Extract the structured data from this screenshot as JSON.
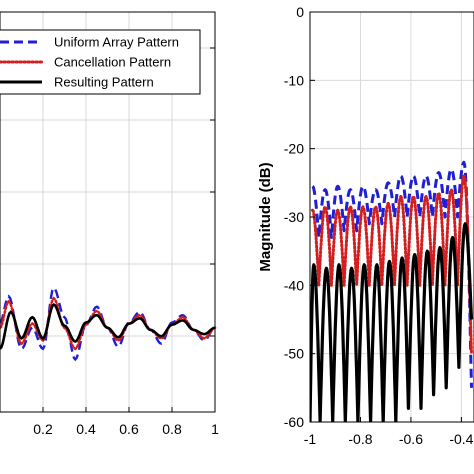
{
  "chart_data": [
    {
      "type": "line",
      "title": "",
      "xlabel": "",
      "ylabel": "",
      "xlim": [
        0.0,
        1.0
      ],
      "x_ticks": [
        "0.2",
        "0.4",
        "0.6",
        "0.8",
        "1"
      ],
      "x_tick_values": [
        0.2,
        0.4,
        0.6,
        0.8,
        1.0
      ],
      "grid": true,
      "legend": {
        "placement": "top-right",
        "entries": [
          "Uniform Array Pattern",
          "Cancellation Pattern",
          "Resulting Pattern"
        ]
      },
      "series": [
        {
          "name": "Uniform Array Pattern",
          "color": "#1f1fd6",
          "style": "dashed",
          "x": [
            0.0,
            0.04,
            0.1,
            0.15,
            0.2,
            0.25,
            0.3,
            0.35,
            0.4,
            0.45,
            0.5,
            0.55,
            0.6,
            0.65,
            0.7,
            0.75,
            0.8,
            0.85,
            0.9,
            0.95,
            1.0
          ],
          "y": [
            0.005,
            0.03,
            -0.02,
            0.0,
            -0.02,
            0.038,
            0.01,
            -0.03,
            0.003,
            0.02,
            0.0,
            -0.018,
            0.005,
            0.015,
            -0.002,
            -0.015,
            0.005,
            0.012,
            -0.002,
            -0.012,
            0.0
          ]
        },
        {
          "name": "Cancellation Pattern",
          "color": "#d21e1e",
          "style": "dotted",
          "x": [
            0.0,
            0.04,
            0.1,
            0.15,
            0.2,
            0.25,
            0.3,
            0.35,
            0.4,
            0.45,
            0.5,
            0.55,
            0.6,
            0.65,
            0.7,
            0.75,
            0.8,
            0.85,
            0.9,
            0.95,
            1.0
          ],
          "y": [
            0.0,
            0.025,
            -0.015,
            0.004,
            -0.012,
            0.028,
            0.0,
            -0.02,
            0.003,
            0.016,
            0.0,
            -0.012,
            0.004,
            0.012,
            -0.002,
            -0.01,
            0.003,
            0.01,
            -0.002,
            -0.01,
            0.0
          ]
        },
        {
          "name": "Resulting Pattern",
          "color": "#000000",
          "style": "solid",
          "x": [
            0.0,
            0.05,
            0.1,
            0.15,
            0.2,
            0.25,
            0.3,
            0.35,
            0.4,
            0.45,
            0.5,
            0.55,
            0.6,
            0.65,
            0.7,
            0.75,
            0.8,
            0.85,
            0.9,
            0.95,
            1.0
          ],
          "y": [
            -0.02,
            0.015,
            -0.01,
            0.01,
            -0.01,
            0.022,
            0.002,
            -0.013,
            0.005,
            0.012,
            0.0,
            -0.009,
            0.004,
            0.009,
            -0.002,
            -0.008,
            0.003,
            0.007,
            -0.002,
            -0.006,
            0.0
          ]
        }
      ]
    },
    {
      "type": "line",
      "title": "",
      "xlabel": "",
      "ylabel": "Magnitude (dB)",
      "xlim": [
        -1.0,
        -0.35
      ],
      "ylim": [
        -60,
        0
      ],
      "x_ticks": [
        "-1",
        "-0.8",
        "-0.6",
        "-0.4"
      ],
      "x_tick_values": [
        -1.0,
        -0.8,
        -0.6,
        -0.4
      ],
      "y_ticks": [
        "0",
        "-10",
        "-20",
        "-30",
        "-40",
        "-50",
        "-60"
      ],
      "y_tick_values": [
        0,
        -10,
        -20,
        -30,
        -40,
        -50,
        -60
      ],
      "grid": true,
      "series": [
        {
          "name": "Uniform Array Pattern",
          "color": "#1f1fd6",
          "style": "dashed",
          "peaks_x": [
            -0.99,
            -0.94,
            -0.89,
            -0.84,
            -0.79,
            -0.74,
            -0.69,
            -0.64,
            -0.59,
            -0.54,
            -0.49,
            -0.44,
            -0.39
          ],
          "peaks_y": [
            -25.5,
            -26,
            -25.5,
            -26,
            -25.5,
            -26,
            -25,
            -24,
            -24,
            -24,
            -23.5,
            -23,
            -22
          ],
          "nulls_x": [
            -0.965,
            -0.915,
            -0.865,
            -0.815,
            -0.765,
            -0.715,
            -0.665,
            -0.615,
            -0.565,
            -0.515,
            -0.465,
            -0.415,
            -0.36
          ],
          "nulls_y": [
            -33,
            -33,
            -32,
            -32,
            -31,
            -31,
            -30,
            -30,
            -30,
            -30,
            -30,
            -30,
            -55
          ]
        },
        {
          "name": "Cancellation Pattern",
          "color": "#d21e1e",
          "style": "dotted",
          "peaks_x": [
            -0.99,
            -0.94,
            -0.89,
            -0.84,
            -0.79,
            -0.74,
            -0.69,
            -0.64,
            -0.59,
            -0.54,
            -0.49,
            -0.44,
            -0.39
          ],
          "peaks_y": [
            -29,
            -28.5,
            -29,
            -28.5,
            -28.5,
            -28.5,
            -28,
            -27,
            -27,
            -27,
            -26.5,
            -26,
            -24
          ],
          "nulls_x": [
            -0.965,
            -0.915,
            -0.865,
            -0.815,
            -0.765,
            -0.715,
            -0.665,
            -0.615,
            -0.565,
            -0.515,
            -0.465,
            -0.415,
            -0.36
          ],
          "nulls_y": [
            -40,
            -40,
            -40,
            -40,
            -40,
            -40,
            -40,
            -40,
            -40,
            -40,
            -40,
            -40,
            -50
          ]
        },
        {
          "name": "Resulting Pattern",
          "color": "#000000",
          "style": "solid",
          "peaks_x": [
            -0.985,
            -0.935,
            -0.885,
            -0.835,
            -0.785,
            -0.735,
            -0.685,
            -0.635,
            -0.585,
            -0.535,
            -0.485,
            -0.435,
            -0.385
          ],
          "peaks_y": [
            -37,
            -37.5,
            -37,
            -37.5,
            -37,
            -37,
            -36.5,
            -36,
            -35.5,
            -35,
            -34.5,
            -33,
            -31
          ],
          "nulls_x": [
            -1.0,
            -0.96,
            -0.91,
            -0.86,
            -0.81,
            -0.76,
            -0.71,
            -0.66,
            -0.61,
            -0.56,
            -0.51,
            -0.46,
            -0.41,
            -0.36
          ],
          "nulls_y": [
            -60,
            -60,
            -60,
            -60,
            -60,
            -60,
            -60,
            -60,
            -58,
            -58,
            -56,
            -55,
            -52,
            -45
          ]
        }
      ]
    }
  ]
}
